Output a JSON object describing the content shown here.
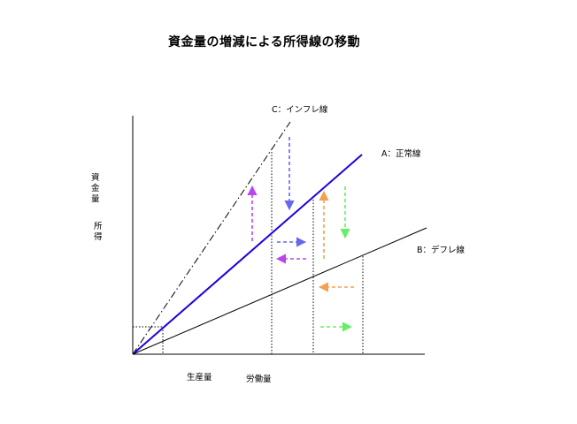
{
  "title": "資金量の増減による所得線の移動",
  "line_labels": {
    "a": "A：正常線",
    "b": "B：デフレ線",
    "c": "C：インフレ線"
  },
  "y_axis_labels": {
    "capital": "資金量",
    "income": "所得"
  },
  "x_axis_labels": {
    "production": "生産量",
    "labor": "労働量"
  },
  "colors": {
    "normal_line": "#2200dd",
    "axis": "#000000",
    "blue_arrow": "#6666ee",
    "purple_arrow": "#bb44ee",
    "orange_arrow": "#f5a050",
    "green_arrow": "#66ee66"
  }
}
